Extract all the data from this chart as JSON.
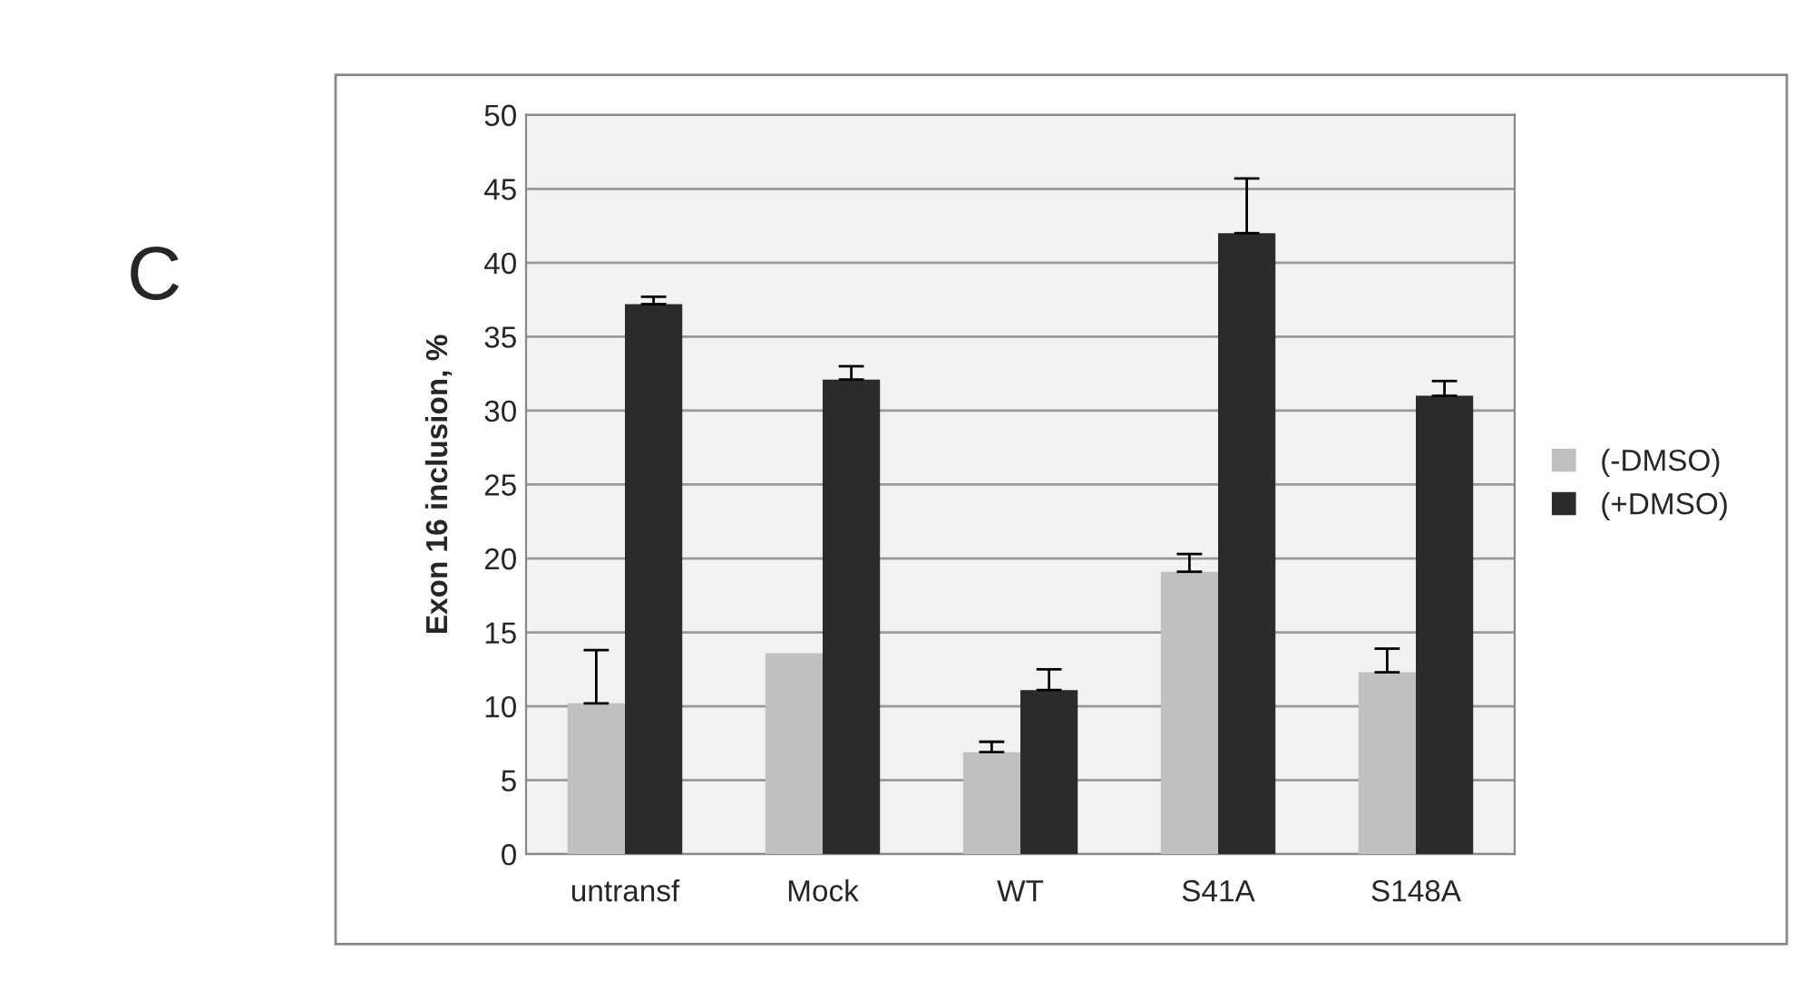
{
  "chart_data": {
    "type": "bar",
    "ylabel": "Exon 16 inclusion, %",
    "categories": [
      "untransf",
      "Mock",
      "WT",
      "S41A",
      "S148A"
    ],
    "series": [
      {
        "name": "(-DMSO)",
        "color": "#c0c0c0",
        "values": [
          10.2,
          13.6,
          6.9,
          19.1,
          12.3
        ],
        "errors": [
          [
            10.2,
            13.8
          ],
          null,
          [
            6.9,
            7.6
          ],
          [
            19.1,
            20.3
          ],
          [
            12.3,
            13.9
          ]
        ]
      },
      {
        "name": "(+DMSO)",
        "color": "#2b2b2b",
        "values": [
          37.2,
          32.1,
          11.1,
          42.0,
          31.0
        ],
        "errors": [
          [
            37.2,
            37.7
          ],
          [
            32.1,
            33.0
          ],
          [
            11.1,
            12.5
          ],
          [
            42.0,
            45.7
          ],
          [
            31.0,
            32.0
          ]
        ]
      }
    ],
    "ylim": [
      0,
      50
    ],
    "yticks": [
      0,
      5,
      10,
      15,
      20,
      25,
      30,
      35,
      40,
      45,
      50
    ],
    "grid": "y",
    "legend": "right",
    "annotations": [
      "C"
    ]
  }
}
